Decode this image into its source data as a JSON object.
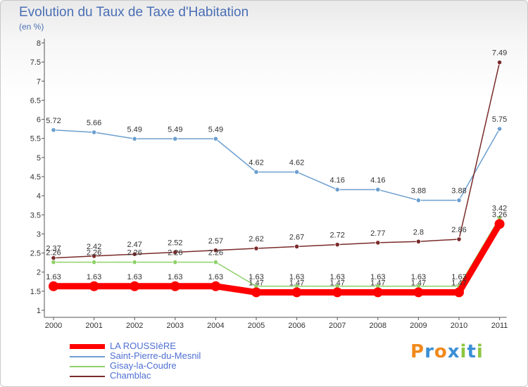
{
  "header": {
    "title": "Evolution du Taux de Taxe d'Habitation",
    "subtitle": "(en %)"
  },
  "logo": {
    "letters": [
      "P",
      "r",
      "o",
      "x",
      "i",
      "t",
      "i"
    ],
    "colors": [
      "#f08a1c",
      "#3b8fd6",
      "#f08a1c",
      "#3b8fd6",
      "#8cc63f",
      "#3b8fd6",
      "#8cc63f"
    ]
  },
  "chart_data": {
    "type": "line",
    "title": "Evolution du Taux de Taxe d'Habitation",
    "ylabel": "(en %)",
    "xlabel": "",
    "x": [
      "2000",
      "2001",
      "2002",
      "2003",
      "2004",
      "2005",
      "2006",
      "2007",
      "2008",
      "2009",
      "2010",
      "2011"
    ],
    "ylim": [
      1,
      8
    ],
    "yticks": [
      "1",
      "1.5",
      "2",
      "2.5",
      "3",
      "3.5",
      "4",
      "4.5",
      "5",
      "5.5",
      "6",
      "6.5",
      "7",
      "7.5",
      "8"
    ],
    "grid": false,
    "legend": "bottom-left",
    "series": [
      {
        "name": "LA ROUSSIèRE",
        "color": "#ff0000",
        "values": [
          1.63,
          1.63,
          1.63,
          1.63,
          1.63,
          1.47,
          1.47,
          1.47,
          1.47,
          1.47,
          1.47,
          3.26
        ],
        "labels": [
          "1.63",
          "1.63",
          "1.63",
          "1.63",
          "1.63",
          "1.47",
          "1.47",
          "1.47",
          "1.47",
          "1.47",
          "1.47",
          "3.26"
        ]
      },
      {
        "name": "Saint-Pierre-du-Mesnil",
        "color": "#6c9fcf",
        "values": [
          5.72,
          5.66,
          5.49,
          5.49,
          5.49,
          4.62,
          4.62,
          4.16,
          4.16,
          3.88,
          3.88,
          5.75
        ],
        "labels": [
          "5.72",
          "5.66",
          "5.49",
          "5.49",
          "5.49",
          "4.62",
          "4.62",
          "4.16",
          "4.16",
          "3.88",
          "3.88",
          "5.75"
        ]
      },
      {
        "name": "Gisay-la-Coudre",
        "color": "#8fd16a",
        "values": [
          2.26,
          2.26,
          2.26,
          2.26,
          2.26,
          1.63,
          1.63,
          1.63,
          1.63,
          1.63,
          1.63,
          3.42
        ],
        "labels": [
          "2.26",
          "2.26",
          "2.26",
          "2.26",
          "2.26",
          "1.63",
          "1.63",
          "1.63",
          "1.63",
          "1.63",
          "1.63",
          "3.42"
        ]
      },
      {
        "name": "Chamblac",
        "color": "#7a2a2a",
        "values": [
          2.37,
          2.42,
          2.47,
          2.52,
          2.57,
          2.62,
          2.67,
          2.72,
          2.77,
          2.8,
          2.86,
          7.49
        ],
        "labels": [
          "2.37",
          "2.42",
          "2.47",
          "2.52",
          "2.57",
          "2.62",
          "2.67",
          "2.72",
          "2.77",
          "2.8",
          "2.86",
          "7.49"
        ]
      }
    ]
  }
}
